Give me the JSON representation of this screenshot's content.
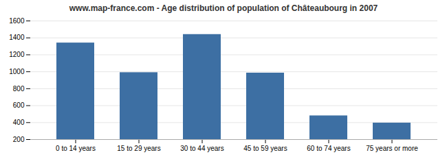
{
  "chart_data": {
    "type": "bar",
    "title": "www.map-france.com - Age distribution of population of Châteaubourg in 2007",
    "categories": [
      "0 to 14 years",
      "15 to 29 years",
      "30 to 44 years",
      "45 to 59 years",
      "60 to 74 years",
      "75 years or more"
    ],
    "values": [
      1340,
      990,
      1440,
      985,
      480,
      395
    ],
    "color": "#3d6fa3",
    "ylim": [
      200,
      1600
    ],
    "yticks": [
      200,
      400,
      600,
      800,
      1000,
      1200,
      1400,
      1600
    ],
    "grid": true
  }
}
